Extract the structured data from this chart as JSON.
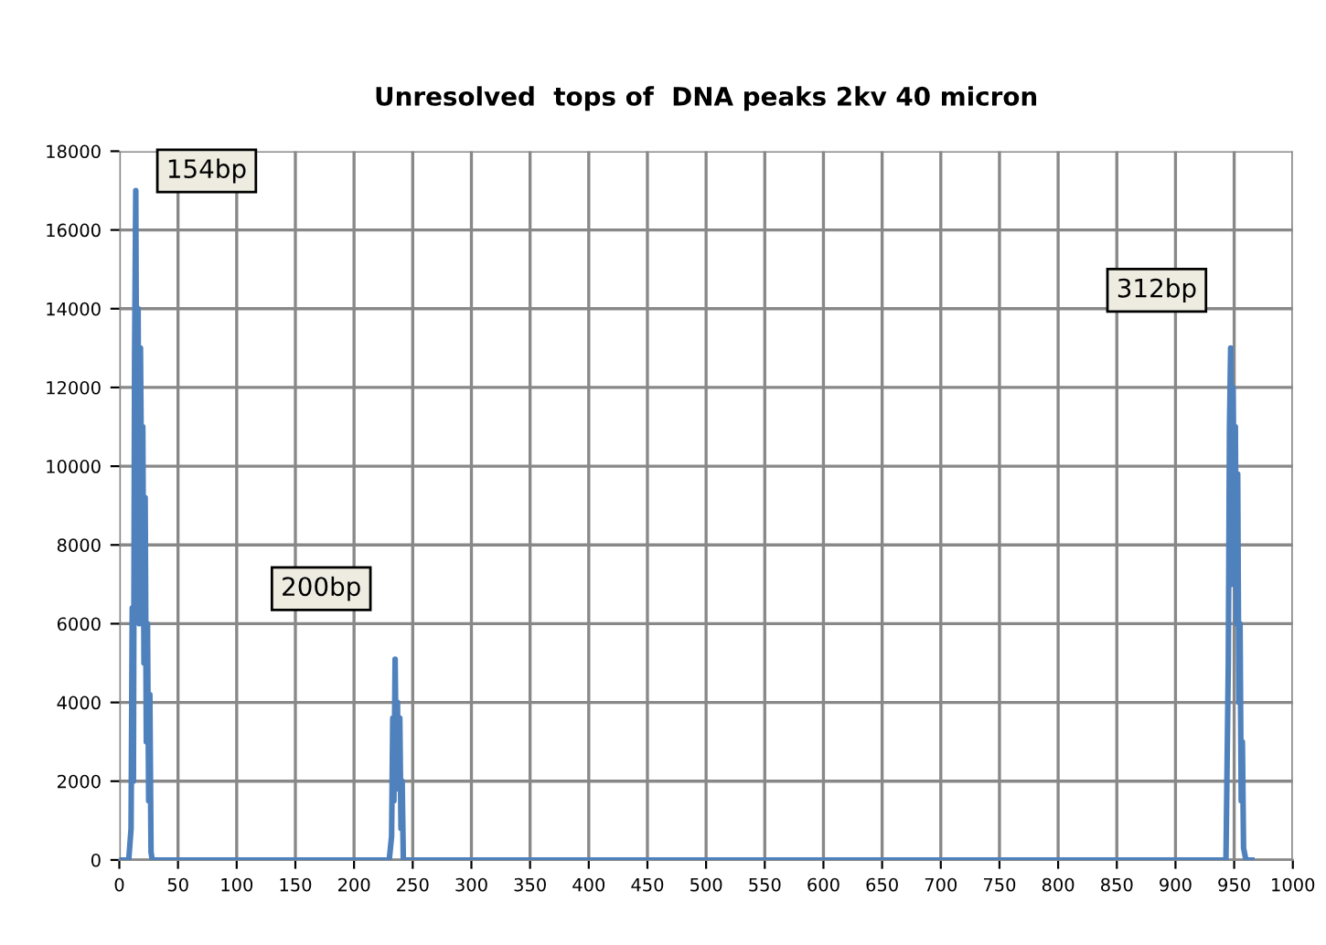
{
  "chart_data": {
    "type": "line",
    "title": "Unresolved  tops of  DNA peaks 2kv 40 micron",
    "x": [
      1,
      8,
      10,
      11,
      12,
      13,
      14,
      15,
      16,
      17,
      18,
      19,
      20,
      21,
      22,
      23,
      24,
      25,
      26,
      27,
      28,
      230,
      232,
      233,
      234,
      235,
      236,
      237,
      238,
      239,
      240,
      241,
      242,
      943,
      945,
      946,
      947,
      948,
      949,
      950,
      951,
      952,
      953,
      954,
      955,
      956,
      957,
      958,
      960,
      965
    ],
    "series": [
      {
        "color": "#4f81bd",
        "values": [
          0,
          0,
          800,
          6400,
          2000,
          12800,
          17000,
          9000,
          14000,
          6000,
          13000,
          9200,
          11000,
          5000,
          9200,
          3000,
          6000,
          1500,
          4200,
          200,
          0,
          0,
          600,
          3600,
          1500,
          5100,
          2500,
          4000,
          1800,
          3600,
          800,
          2000,
          0,
          0,
          5000,
          11000,
          13000,
          7000,
          12000,
          9000,
          11000,
          6000,
          9800,
          4000,
          6000,
          1500,
          3000,
          300,
          0,
          0
        ]
      }
    ],
    "xlim": [
      0,
      1000
    ],
    "xticks": [
      0,
      50,
      100,
      150,
      200,
      250,
      300,
      350,
      400,
      450,
      500,
      550,
      600,
      650,
      700,
      750,
      800,
      850,
      900,
      950,
      1000
    ],
    "ylim": [
      0,
      18000
    ],
    "yticks": [
      0,
      2000,
      4000,
      6000,
      8000,
      10000,
      12000,
      14000,
      16000,
      18000
    ],
    "grid": true,
    "marker": "none",
    "line_style": "solid",
    "annotations": [
      {
        "text": "154bp",
        "x": 14,
        "y": 17000
      },
      {
        "text": "200bp",
        "x": 235,
        "y": 5100
      },
      {
        "text": "312bp",
        "x": 947,
        "y": 13000
      }
    ]
  }
}
